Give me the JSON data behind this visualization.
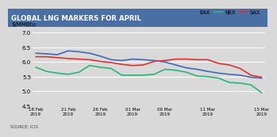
{
  "title": "GLOBAL LNG MARKERS FOR APRIL",
  "title_bg": "#4a6fa5",
  "ylabel": "$/MMBtu",
  "ylim": [
    4.5,
    7.0
  ],
  "yticks": [
    4.5,
    5.0,
    5.5,
    6.0,
    6.5,
    7.0
  ],
  "x_labels": [
    "18 Feb\n2019",
    "21 Feb\n2019",
    "26 Feb\n2019",
    "01 Mar\n2019",
    "06 Mar\n2019",
    "11 Mar\n2019",
    "15 Mar\n2019"
  ],
  "source": "SOURCE: ICIS",
  "series": {
    "EAX": {
      "color": "#4169b8",
      "values": [
        6.3,
        6.28,
        6.25,
        6.38,
        6.35,
        6.3,
        6.2,
        6.08,
        6.05,
        6.1,
        6.08,
        6.05,
        6.0,
        5.9,
        5.8,
        5.75,
        5.68,
        5.62,
        5.58,
        5.55,
        5.48,
        5.45
      ]
    },
    "NEX": {
      "color": "#2db37a",
      "values": [
        5.82,
        5.68,
        5.62,
        5.58,
        5.65,
        5.88,
        5.82,
        5.78,
        5.55,
        5.55,
        5.55,
        5.58,
        5.75,
        5.72,
        5.65,
        5.52,
        5.5,
        5.45,
        5.3,
        5.28,
        5.22,
        4.95
      ]
    },
    "SAX": {
      "color": "#e03030",
      "values": [
        6.18,
        6.18,
        6.15,
        6.12,
        6.1,
        6.08,
        6.02,
        5.98,
        5.92,
        5.88,
        5.9,
        6.02,
        6.05,
        6.1,
        6.1,
        6.08,
        6.08,
        5.95,
        5.9,
        5.78,
        5.55,
        5.48
      ]
    }
  },
  "x_tick_positions": [
    0,
    3,
    6,
    9,
    12,
    16,
    21
  ],
  "background_color": "#d9d9d9",
  "plot_bg": "#d9d9d9",
  "grid_color": "#ffffff",
  "line_width": 1.2
}
